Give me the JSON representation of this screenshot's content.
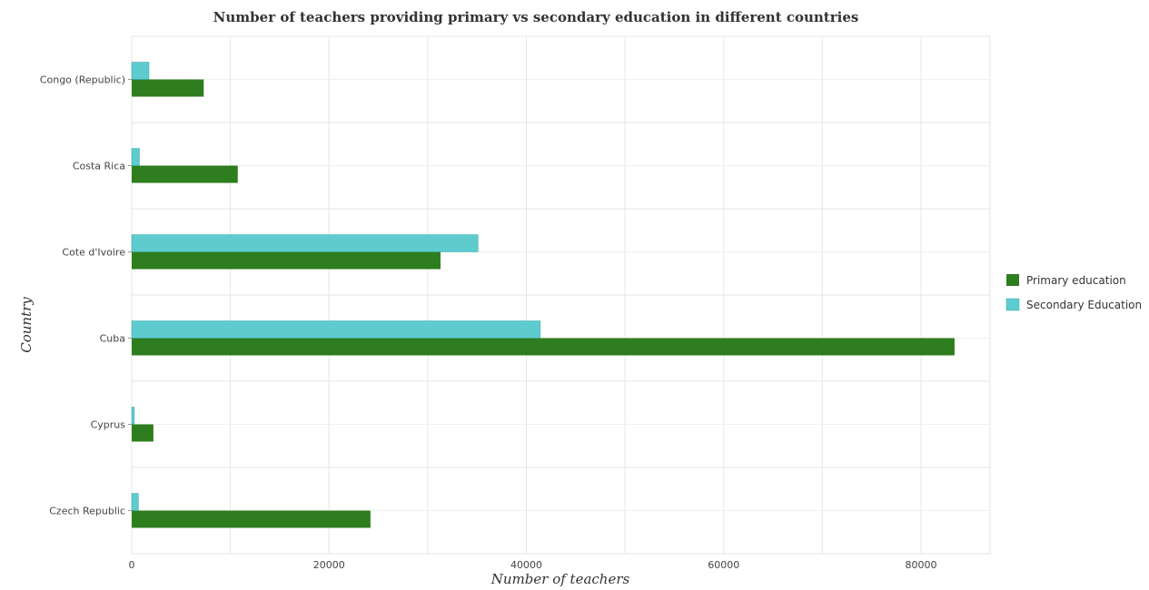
{
  "colors": {
    "primary": "#2e7d1e",
    "secondary": "#5ecbcf",
    "grid": "#e6e6e6"
  },
  "chart_data": {
    "type": "bar",
    "orientation": "horizontal",
    "title": "Number of teachers providing primary vs secondary education in different countries",
    "xlabel": "Number of teachers",
    "ylabel": "Country",
    "xlim": [
      0,
      87000
    ],
    "xticks": [
      0,
      20000,
      40000,
      60000,
      80000
    ],
    "xtick_labels": [
      "0",
      "20000",
      "40000",
      "60000",
      "80000"
    ],
    "grid": true,
    "legend_position": "right",
    "categories": [
      "Congo (Republic)",
      "Costa Rica",
      "Cote d'Ivoire",
      "Cuba",
      "Cyprus",
      "Czech Republic"
    ],
    "series": [
      {
        "name": "Primary education",
        "values": [
          7300,
          10750,
          31300,
          83400,
          2200,
          24200
        ]
      },
      {
        "name": "Secondary Education",
        "values": [
          1750,
          780,
          35100,
          41400,
          270,
          680
        ]
      }
    ]
  }
}
